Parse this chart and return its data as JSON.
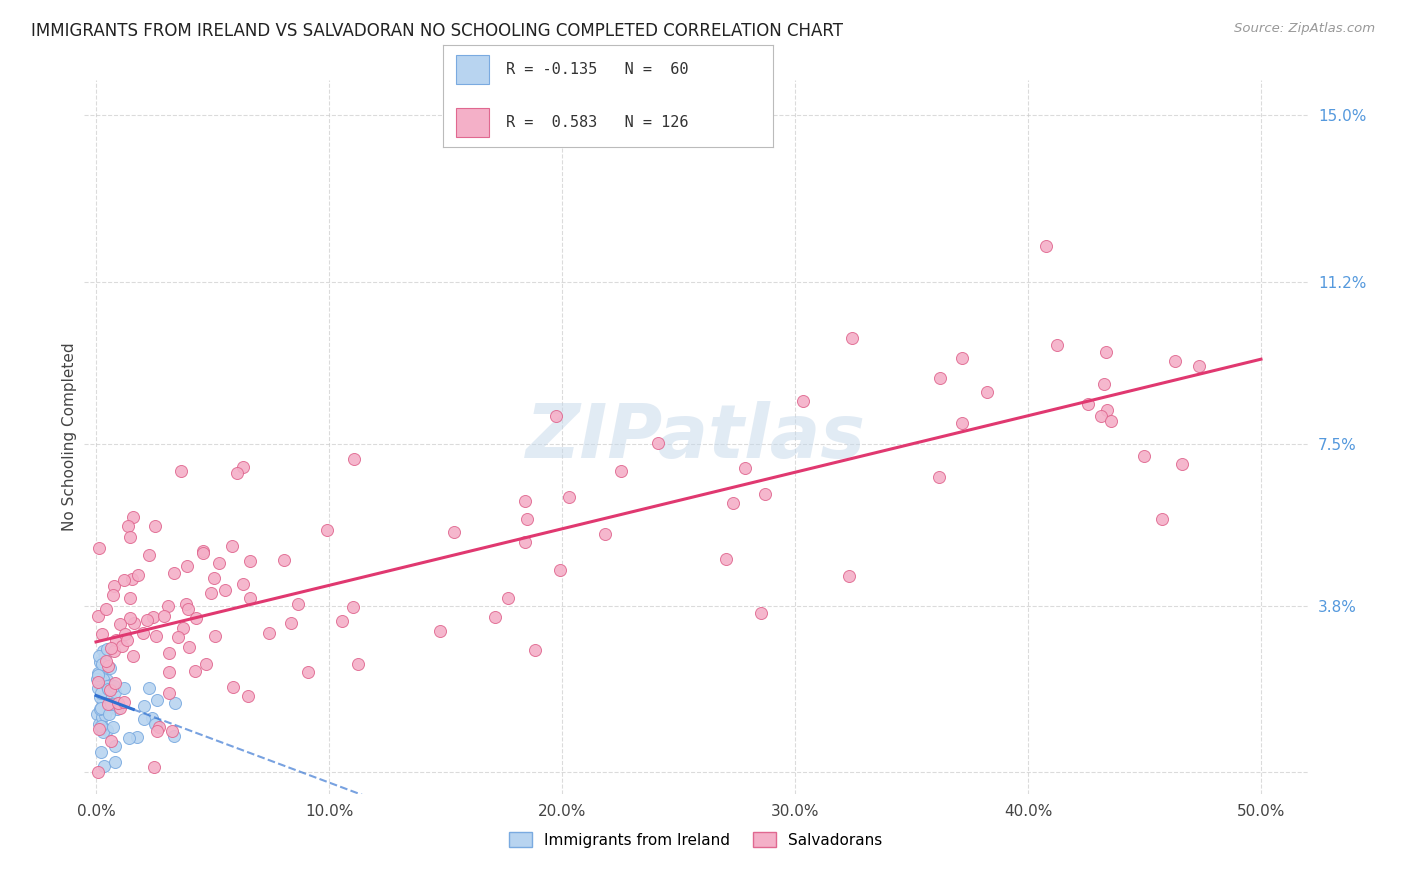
{
  "title": "IMMIGRANTS FROM IRELAND VS SALVADORAN NO SCHOOLING COMPLETED CORRELATION CHART",
  "source": "Source: ZipAtlas.com",
  "ylabel_left": "No Schooling Completed",
  "xlim": [
    -0.005,
    0.52
  ],
  "ylim": [
    -0.005,
    0.158
  ],
  "ireland_color": "#b8d4f0",
  "ireland_edge_color": "#7aaae0",
  "salvadoran_color": "#f4b0c8",
  "salvadoran_edge_color": "#e06890",
  "ireland_trend_color": "#3070d0",
  "salvadoran_trend_color": "#e03870",
  "watermark": "ZIPatlas",
  "background_color": "#ffffff",
  "grid_color": "#cccccc",
  "title_color": "#222222",
  "source_color": "#999999",
  "axis_label_color": "#444444",
  "tick_label_color_y_right": "#5599dd",
  "tick_label_color_x": "#444444",
  "ireland_R": "-0.135",
  "ireland_N": "60",
  "salvadoran_R": "0.583",
  "salvadoran_N": "126",
  "legend_label_ireland": "Immigrants from Ireland",
  "legend_label_salvadoran": "Salvadorans"
}
